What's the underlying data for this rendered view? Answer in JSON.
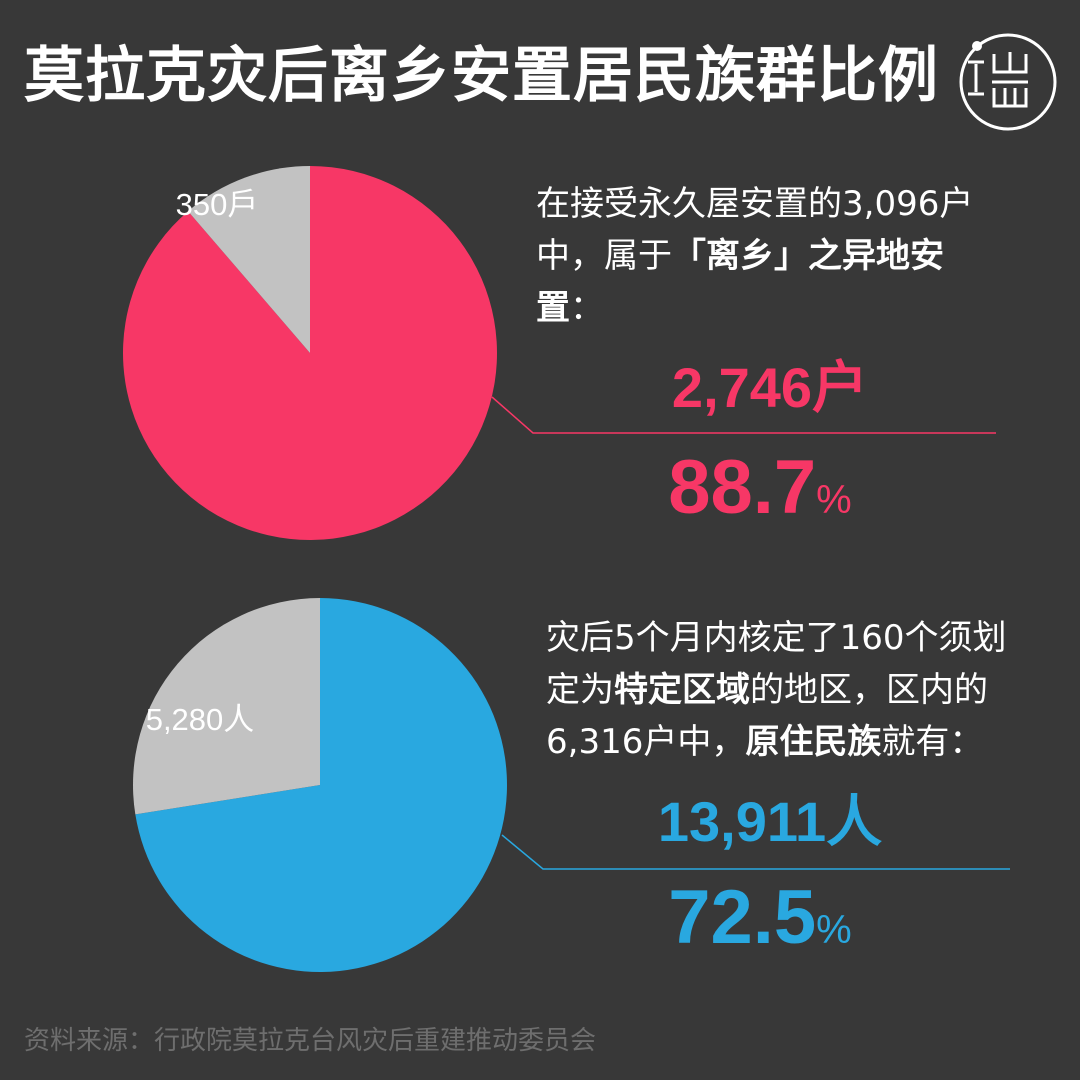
{
  "title": "莫拉克灾后离乡安置居民族群比例",
  "colors": {
    "background": "#383838",
    "pink": "#f73766",
    "blue": "#29a8e0",
    "gray": "#c2c2c2",
    "source": "#6e6e6e"
  },
  "logo": {
    "icon": "theinitium-logo-icon",
    "lines": [
      "端"
    ]
  },
  "chart_data": [
    {
      "type": "pie",
      "slices": [
        {
          "label": "2,746户",
          "value": 2746,
          "percent": 88.7,
          "color": "#f73766"
        },
        {
          "label": "350戶",
          "value": 350,
          "percent": 11.3,
          "color": "#c2c2c2"
        }
      ],
      "total": 3096
    },
    {
      "type": "pie",
      "slices": [
        {
          "label": "13,911人",
          "value": 13911,
          "percent": 72.5,
          "color": "#29a8e0"
        },
        {
          "label": "5,280人",
          "value": 5280,
          "percent": 27.5,
          "color": "#c2c2c2"
        }
      ]
    }
  ],
  "block1": {
    "desc_a": "在接受永久屋安置的3,096户中，属于",
    "desc_bold": "「离乡」之异地安置",
    "desc_b": "：",
    "count": "2,746户",
    "percent": "88.7",
    "percent_unit": "%"
  },
  "block2": {
    "desc_a": "灾后5个月内核定了160个须划定为",
    "desc_bold1": "特定区域",
    "desc_b": "的地区，区内的6,316户中，",
    "desc_bold2": "原住民族",
    "desc_c": "就有：",
    "count": "13,911人",
    "percent": "72.5",
    "percent_unit": "%"
  },
  "source": "资料来源：行政院莫拉克台风灾后重建推动委员会"
}
